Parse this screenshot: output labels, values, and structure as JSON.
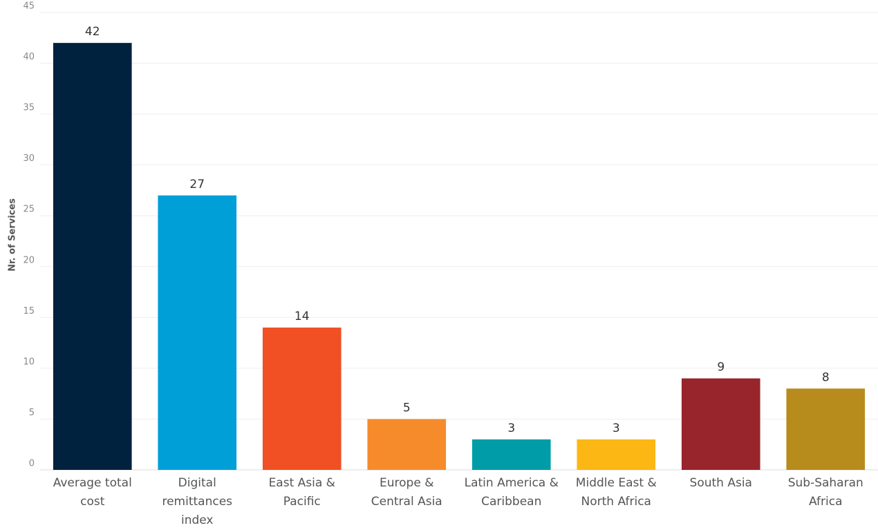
{
  "chart_data": {
    "type": "bar",
    "y_label": "Nr. of Services",
    "categories": [
      "Average total cost",
      "Digital remittances index",
      "East Asia & Pacific",
      "Europe & Central Asia",
      "Latin America & Caribbean",
      "Middle East & North Africa",
      "South Asia",
      "Sub-Saharan Africa"
    ],
    "values": [
      42,
      27,
      14,
      5,
      3,
      3,
      9,
      8
    ],
    "colors": [
      "#00223f",
      "#009fd8",
      "#f05023",
      "#f68b2c",
      "#009ca7",
      "#fdb714",
      "#98252b",
      "#b88b1d"
    ],
    "ylim": [
      0,
      45
    ],
    "yticks": [
      0,
      5,
      10,
      15,
      20,
      25,
      30,
      35,
      40,
      45
    ],
    "grid": true
  }
}
